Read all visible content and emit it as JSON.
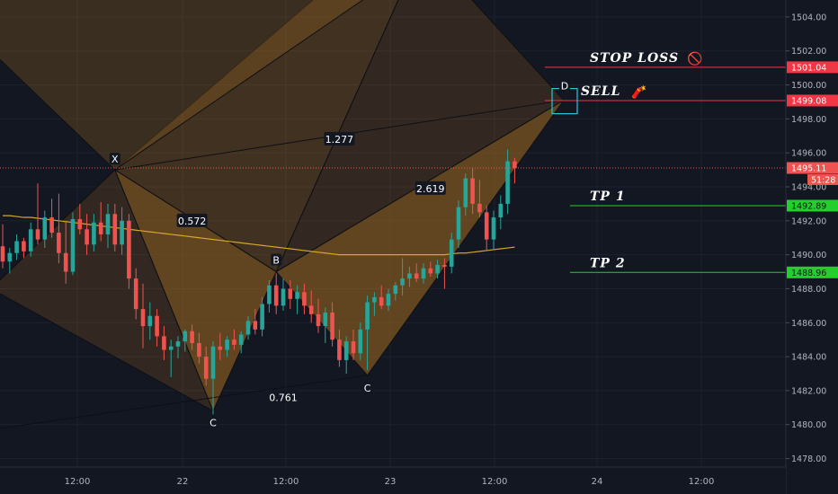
{
  "chart_data": {
    "type": "candlestick",
    "x_axis": {
      "ticks": [
        "12:00",
        "22",
        "12:00",
        "23",
        "12:00",
        "24",
        "12:00"
      ]
    },
    "y_axis": {
      "ticks": [
        "1478.00",
        "1480.00",
        "1482.00",
        "1484.00",
        "1486.00",
        "1488.00",
        "1490.00",
        "1492.00",
        "1494.00",
        "1496.00",
        "1498.00",
        "1500.00",
        "1502.00",
        "1504.00"
      ],
      "range": [
        1477.5,
        1505.0
      ]
    },
    "candles": [
      [
        1490.5,
        1491.8,
        1489.2,
        1489.6
      ],
      [
        1489.6,
        1490.4,
        1488.9,
        1490.1
      ],
      [
        1490.1,
        1491.2,
        1489.7,
        1490.8
      ],
      [
        1490.8,
        1491.0,
        1489.8,
        1490.2
      ],
      [
        1490.2,
        1491.9,
        1489.9,
        1491.5
      ],
      [
        1491.5,
        1494.2,
        1490.6,
        1490.9
      ],
      [
        1490.9,
        1492.6,
        1490.4,
        1492.2
      ],
      [
        1492.2,
        1493.3,
        1491.0,
        1491.3
      ],
      [
        1491.3,
        1493.6,
        1489.5,
        1490.1
      ],
      [
        1490.1,
        1492.0,
        1488.3,
        1489.0
      ],
      [
        1489.0,
        1492.5,
        1488.8,
        1492.1
      ],
      [
        1492.1,
        1493.0,
        1491.2,
        1491.5
      ],
      [
        1491.5,
        1492.4,
        1490.0,
        1490.6
      ],
      [
        1490.6,
        1492.4,
        1490.2,
        1491.9
      ],
      [
        1491.9,
        1493.1,
        1490.8,
        1491.2
      ],
      [
        1491.2,
        1493.0,
        1490.4,
        1492.4
      ],
      [
        1492.4,
        1493.0,
        1490.2,
        1490.6
      ],
      [
        1490.6,
        1492.8,
        1490.0,
        1492.0
      ],
      [
        1492.0,
        1492.4,
        1488.0,
        1488.6
      ],
      [
        1488.6,
        1489.2,
        1486.2,
        1486.8
      ],
      [
        1486.8,
        1488.3,
        1484.5,
        1485.8
      ],
      [
        1485.8,
        1487.2,
        1485.0,
        1486.4
      ],
      [
        1486.4,
        1486.8,
        1484.6,
        1485.2
      ],
      [
        1485.2,
        1485.8,
        1483.8,
        1484.4
      ],
      [
        1484.4,
        1485.0,
        1482.8,
        1484.6
      ],
      [
        1484.6,
        1485.2,
        1483.9,
        1484.9
      ],
      [
        1484.9,
        1485.6,
        1484.3,
        1485.5
      ],
      [
        1485.5,
        1485.9,
        1484.4,
        1484.8
      ],
      [
        1484.8,
        1485.4,
        1483.6,
        1484.0
      ],
      [
        1484.0,
        1484.6,
        1482.3,
        1482.7
      ],
      [
        1482.7,
        1484.9,
        1480.6,
        1484.6
      ],
      [
        1484.6,
        1485.4,
        1483.8,
        1484.4
      ],
      [
        1484.4,
        1485.2,
        1484.0,
        1485.0
      ],
      [
        1485.0,
        1485.6,
        1484.4,
        1484.7
      ],
      [
        1484.7,
        1485.5,
        1484.2,
        1485.3
      ],
      [
        1485.3,
        1486.4,
        1485.0,
        1486.1
      ],
      [
        1486.1,
        1486.8,
        1485.3,
        1485.6
      ],
      [
        1485.6,
        1487.5,
        1485.2,
        1487.1
      ],
      [
        1487.1,
        1488.5,
        1486.6,
        1488.2
      ],
      [
        1488.2,
        1488.9,
        1486.5,
        1487.0
      ],
      [
        1487.0,
        1488.6,
        1486.7,
        1488.0
      ],
      [
        1488.0,
        1488.5,
        1486.8,
        1487.4
      ],
      [
        1487.4,
        1488.2,
        1486.5,
        1487.8
      ],
      [
        1487.8,
        1488.3,
        1486.5,
        1487.0
      ],
      [
        1487.0,
        1487.9,
        1486.0,
        1486.5
      ],
      [
        1486.5,
        1487.4,
        1485.4,
        1485.8
      ],
      [
        1485.8,
        1486.9,
        1484.8,
        1486.6
      ],
      [
        1486.6,
        1487.2,
        1484.6,
        1485.0
      ],
      [
        1485.0,
        1485.6,
        1483.4,
        1483.8
      ],
      [
        1483.8,
        1485.2,
        1483.0,
        1484.9
      ],
      [
        1484.9,
        1485.6,
        1483.8,
        1484.2
      ],
      [
        1484.2,
        1486.0,
        1483.8,
        1485.6
      ],
      [
        1485.6,
        1487.6,
        1483.2,
        1487.2
      ],
      [
        1487.2,
        1487.8,
        1486.4,
        1487.5
      ],
      [
        1487.5,
        1488.2,
        1486.8,
        1487.0
      ],
      [
        1487.0,
        1488.0,
        1486.7,
        1487.7
      ],
      [
        1487.7,
        1488.4,
        1487.3,
        1488.2
      ],
      [
        1488.2,
        1489.8,
        1487.6,
        1488.6
      ],
      [
        1488.6,
        1489.3,
        1488.1,
        1488.9
      ],
      [
        1488.9,
        1489.5,
        1488.4,
        1488.6
      ],
      [
        1488.6,
        1489.5,
        1488.3,
        1489.2
      ],
      [
        1489.2,
        1489.6,
        1488.7,
        1488.9
      ],
      [
        1488.9,
        1489.7,
        1488.6,
        1489.4
      ],
      [
        1489.4,
        1489.8,
        1488.0,
        1489.3
      ],
      [
        1489.3,
        1491.3,
        1488.9,
        1490.9
      ],
      [
        1490.9,
        1493.2,
        1490.4,
        1492.8
      ],
      [
        1492.8,
        1494.8,
        1492.3,
        1494.5
      ],
      [
        1494.5,
        1495.1,
        1492.4,
        1493.0
      ],
      [
        1493.0,
        1494.4,
        1492.2,
        1492.5
      ],
      [
        1492.5,
        1492.9,
        1490.2,
        1490.9
      ],
      [
        1490.9,
        1492.6,
        1490.3,
        1492.2
      ],
      [
        1492.2,
        1493.5,
        1491.5,
        1493.0
      ],
      [
        1493.0,
        1496.2,
        1492.4,
        1495.5
      ],
      [
        1495.5,
        1495.7,
        1494.2,
        1495.1
      ]
    ],
    "moving_average": [
      1492.3,
      1492.3,
      1492.25,
      1492.2,
      1492.2,
      1492.15,
      1492.1,
      1492.05,
      1492.0,
      1491.95,
      1491.9,
      1491.85,
      1491.8,
      1491.75,
      1491.7,
      1491.65,
      1491.6,
      1491.55,
      1491.5,
      1491.45,
      1491.4,
      1491.35,
      1491.3,
      1491.25,
      1491.2,
      1491.15,
      1491.1,
      1491.05,
      1491.0,
      1490.95,
      1490.9,
      1490.85,
      1490.8,
      1490.75,
      1490.7,
      1490.65,
      1490.6,
      1490.55,
      1490.5,
      1490.45,
      1490.4,
      1490.35,
      1490.3,
      1490.25,
      1490.2,
      1490.15,
      1490.1,
      1490.05,
      1490.0,
      1490.0,
      1490.0,
      1490.0,
      1490.0,
      1490.0,
      1490.0,
      1490.0,
      1490.0,
      1490.0,
      1490.0,
      1490.0,
      1490.0,
      1490.0,
      1490.0,
      1490.0,
      1490.05,
      1490.1,
      1490.1,
      1490.15,
      1490.2,
      1490.25,
      1490.3,
      1490.35,
      1490.4,
      1490.45
    ],
    "harmonic_pattern": {
      "points": [
        {
          "label": "X",
          "bar": 16,
          "price": 1495.0
        },
        {
          "label": "C",
          "bar": 30,
          "price": 1480.8
        },
        {
          "label": "B",
          "bar": 39,
          "price": 1489.0
        },
        {
          "label": "C",
          "bar": 52,
          "price": 1482.9
        },
        {
          "label": "D",
          "bar": 80,
          "price": 1499.1
        }
      ],
      "ratios": [
        {
          "text": "1.277",
          "bar": 48,
          "price": 1496.8
        },
        {
          "text": "0.572",
          "bar": 27,
          "price": 1492.0
        },
        {
          "text": "2.619",
          "bar": 61,
          "price": 1493.9
        },
        {
          "text": "0.761",
          "bar": 40,
          "price": 1481.6
        }
      ]
    },
    "levels": [
      {
        "name": "STOP LOSS",
        "icon": "🚫",
        "price": 1501.04,
        "label": "1501.04",
        "color": "#f23645"
      },
      {
        "name": "SELL",
        "icon": "🧨",
        "price": 1499.08,
        "label": "1499.08",
        "color": "#f23645"
      },
      {
        "name": "TP 1",
        "price": 1492.89,
        "label": "1492.89",
        "color": "#22d02b"
      },
      {
        "name": "TP 2",
        "price": 1488.96,
        "label": "1488.96",
        "color": "#22d02b"
      }
    ],
    "current_price": {
      "price": 1495.11,
      "label": "1495.11",
      "countdown": "51:28"
    },
    "colors": {
      "up": "#26a69a",
      "down": "#ef5350",
      "ma": "#d8a62a",
      "pattern_fill": "#a36a1f",
      "background": "#131722"
    }
  }
}
